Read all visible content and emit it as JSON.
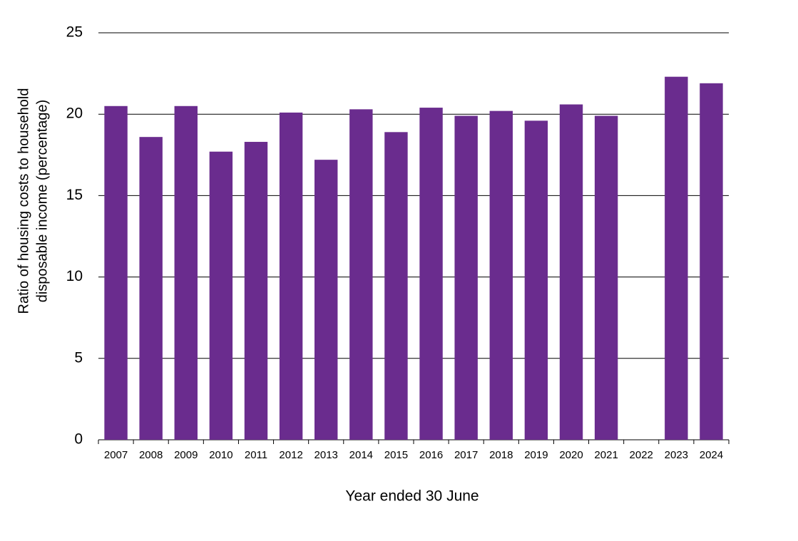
{
  "chart_data": {
    "type": "bar",
    "x_label": "Year ended 30 June",
    "y_label": [
      "Ratio of housing costs to household",
      "disposable income (percentage)"
    ],
    "categories": [
      "2007",
      "2008",
      "2009",
      "2010",
      "2011",
      "2012",
      "2013",
      "2014",
      "2015",
      "2016",
      "2017",
      "2018",
      "2019",
      "2020",
      "2021",
      "2022",
      "2023",
      "2024"
    ],
    "values": [
      20.5,
      18.6,
      20.5,
      17.7,
      18.3,
      20.1,
      17.2,
      20.3,
      18.9,
      20.4,
      19.9,
      20.2,
      19.6,
      20.6,
      19.9,
      null,
      22.3,
      21.9
    ],
    "color": "#6a2c8e",
    "ylim": [
      0,
      25
    ],
    "yticks": [
      0,
      5,
      10,
      15,
      20,
      25
    ],
    "grid": true
  }
}
